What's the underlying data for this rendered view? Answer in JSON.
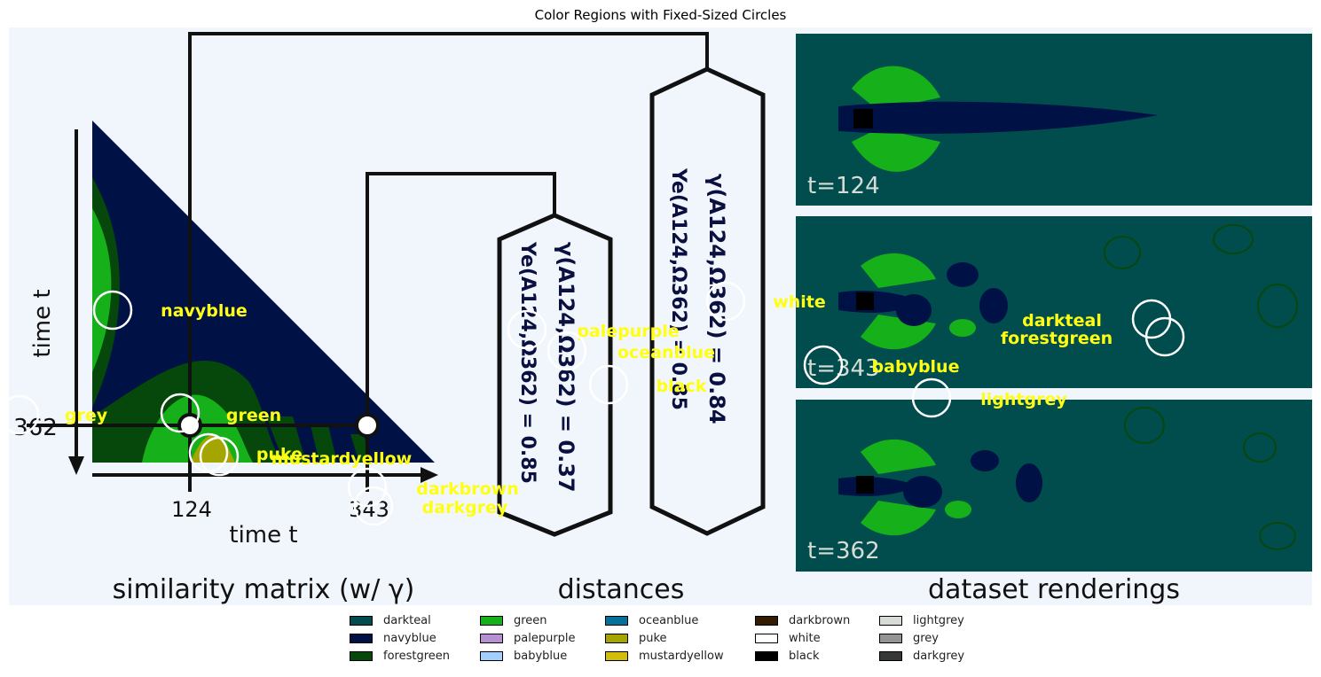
{
  "title": "Color Regions with Fixed-Sized Circles",
  "figure": {
    "matrix_caption": "similarity matrix (w/ γ)",
    "matrix_axis_y": "time t",
    "matrix_axis_x": "time t",
    "tick_124": "124",
    "tick_343": "343",
    "tick_362": "362",
    "distances_caption": "distances",
    "hex_small_line1": "γ(A124,Ω362) = 0.37",
    "hex_small_line2": "Ye(A124,Ω362) = 0.85",
    "hex_big_line1": "γ(A124,Ω362) = 0.84",
    "hex_big_line2": "Ye(A124,Ω362) = 0.85",
    "renderings_caption": "dataset renderings",
    "panel1_label": "t=124",
    "panel2_label": "t=343",
    "panel3_label": "t=362"
  },
  "annotations": [
    {
      "label": "navyblue"
    },
    {
      "label": "grey"
    },
    {
      "label": "green"
    },
    {
      "label": "puke"
    },
    {
      "label": "mustardyellow"
    },
    {
      "label": "darkbrown"
    },
    {
      "label": "darkgrey"
    },
    {
      "label": "palepurple"
    },
    {
      "label": "oceanblue"
    },
    {
      "label": "black"
    },
    {
      "label": "white"
    },
    {
      "label": "darkteal"
    },
    {
      "label": "forestgreen"
    },
    {
      "label": "babyblue"
    },
    {
      "label": "lightgrey"
    }
  ],
  "legend": [
    {
      "label": "darkteal",
      "color": "#014d4e"
    },
    {
      "label": "navyblue",
      "color": "#001146"
    },
    {
      "label": "forestgreen",
      "color": "#06470c"
    },
    {
      "label": "green",
      "color": "#15b01a"
    },
    {
      "label": "palepurple",
      "color": "#b790d4"
    },
    {
      "label": "babyblue",
      "color": "#a2cffe"
    },
    {
      "label": "oceanblue",
      "color": "#03719c"
    },
    {
      "label": "puke",
      "color": "#a5a502"
    },
    {
      "label": "mustardyellow",
      "color": "#d2bd0a"
    },
    {
      "label": "darkbrown",
      "color": "#341c02"
    },
    {
      "label": "white",
      "color": "#ffffff"
    },
    {
      "label": "black",
      "color": "#000000"
    },
    {
      "label": "lightgrey",
      "color": "#d8dcd6"
    },
    {
      "label": "grey",
      "color": "#929591"
    },
    {
      "label": "darkgrey",
      "color": "#363737"
    }
  ]
}
